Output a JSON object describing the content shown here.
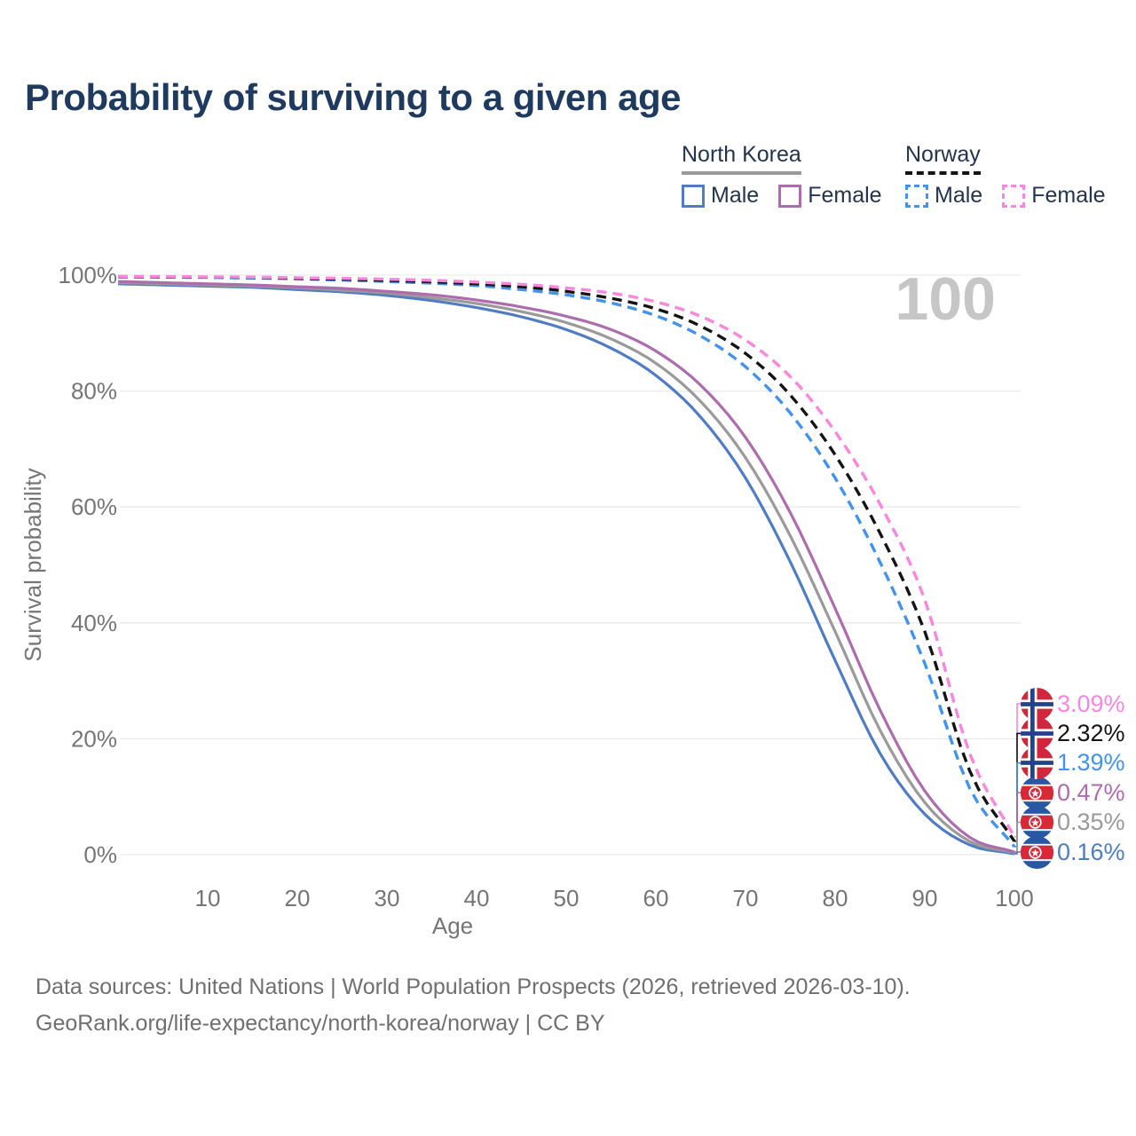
{
  "title": "Probability of surviving to a given age",
  "watermark": "100",
  "legend": {
    "groups": [
      {
        "label": "North Korea",
        "line_style": "solid",
        "underline_color": "#9a9a9a",
        "items": [
          {
            "label": "Male",
            "color": "#4f7cc4",
            "dashed": false
          },
          {
            "label": "Female",
            "color": "#ad6cac",
            "dashed": false
          }
        ]
      },
      {
        "label": "Norway",
        "line_style": "dashed",
        "underline_color": "#141414",
        "items": [
          {
            "label": "Male",
            "color": "#4292f0",
            "dashed": true
          },
          {
            "label": "Female",
            "color": "#fb86dd",
            "dashed": true
          }
        ]
      }
    ]
  },
  "axes": {
    "x": {
      "label": "Age",
      "ticks": [
        10,
        20,
        30,
        40,
        50,
        60,
        70,
        80,
        90,
        100
      ]
    },
    "y": {
      "label": "Survival probability",
      "ticks": [
        "0%",
        "20%",
        "40%",
        "60%",
        "80%",
        "100%"
      ]
    }
  },
  "source": {
    "line1": "Data sources: United Nations | World Population Prospects (2026, retrieved 2026-03-10).",
    "line2": "GeoRank.org/life-expectancy/north-korea/norway | CC BY"
  },
  "colors": {
    "title": "#1e3a5f",
    "axis_text": "#757575",
    "gridline": "#e9e9e9",
    "watermark": "#c6c6c6",
    "norway_flag_red": "#d0273c",
    "norway_flag_blue": "#24418e",
    "nk_flag_blue": "#2857a4",
    "nk_flag_red": "#d82939"
  },
  "chart_data": {
    "type": "line",
    "title": "Probability of surviving to a given age",
    "xlabel": "Age",
    "ylabel": "Survival probability",
    "xlim": [
      0,
      100
    ],
    "ylim": [
      0,
      100
    ],
    "grid": "horizontal",
    "legend_position": "top-right",
    "x_ticks": [
      10,
      20,
      30,
      40,
      50,
      60,
      70,
      80,
      90,
      100
    ],
    "y_ticks_pct": [
      0,
      20,
      40,
      60,
      80,
      100
    ],
    "x": [
      0,
      5,
      10,
      15,
      20,
      25,
      30,
      35,
      40,
      45,
      50,
      55,
      60,
      65,
      70,
      75,
      80,
      85,
      90,
      95,
      100
    ],
    "series": [
      {
        "id": "north-korea-male",
        "name": "North Korea Male",
        "country": "north-korea",
        "sex": "male",
        "style": "solid",
        "color": "#4f7cc4",
        "end_label": "0.16%",
        "values": [
          98.5,
          98.3,
          98.1,
          97.9,
          97.5,
          97.1,
          96.5,
          95.6,
          94.4,
          92.8,
          90.6,
          87.4,
          82.7,
          75.5,
          65.0,
          50.5,
          33.5,
          17.5,
          7.0,
          1.7,
          0.16
        ]
      },
      {
        "id": "north-korea-total",
        "name": "North Korea (both sexes)",
        "country": "north-korea",
        "sex": "both",
        "style": "solid",
        "color": "#9a9a9a",
        "end_label": "0.35%",
        "values": [
          98.7,
          98.5,
          98.3,
          98.1,
          97.8,
          97.4,
          96.9,
          96.1,
          95.1,
          93.7,
          91.8,
          89.0,
          84.8,
          78.2,
          68.5,
          55.0,
          38.5,
          21.5,
          9.0,
          2.3,
          0.35
        ]
      },
      {
        "id": "north-korea-female",
        "name": "North Korea Female",
        "country": "north-korea",
        "sex": "female",
        "style": "solid",
        "color": "#ad6cac",
        "end_label": "0.47%",
        "values": [
          98.9,
          98.7,
          98.5,
          98.3,
          98.0,
          97.7,
          97.2,
          96.6,
          95.7,
          94.5,
          92.9,
          90.6,
          86.9,
          81.0,
          72.0,
          59.0,
          42.5,
          25.0,
          11.0,
          3.0,
          0.47
        ]
      },
      {
        "id": "norway-male",
        "name": "Norway Male",
        "country": "norway",
        "sex": "male",
        "style": "dashed",
        "color": "#4292f0",
        "end_label": "1.39%",
        "values": [
          99.7,
          99.65,
          99.6,
          99.5,
          99.35,
          99.15,
          98.9,
          98.6,
          98.2,
          97.5,
          96.6,
          95.2,
          93.0,
          89.5,
          84.2,
          76.2,
          65.0,
          50.5,
          33.0,
          11.5,
          1.39
        ]
      },
      {
        "id": "norway-total",
        "name": "Norway (both sexes)",
        "country": "norway",
        "sex": "both",
        "style": "dashed",
        "color": "#141414",
        "end_label": "2.32%",
        "values": [
          99.75,
          99.7,
          99.65,
          99.6,
          99.45,
          99.3,
          99.1,
          98.85,
          98.5,
          98.0,
          97.2,
          96.0,
          94.2,
          91.2,
          86.5,
          79.3,
          69.0,
          55.5,
          38.5,
          14.5,
          2.32
        ]
      },
      {
        "id": "norway-female",
        "name": "Norway Female",
        "country": "norway",
        "sex": "female",
        "style": "dashed",
        "color": "#fb86dd",
        "end_label": "3.09%",
        "values": [
          99.8,
          99.75,
          99.7,
          99.65,
          99.55,
          99.45,
          99.3,
          99.1,
          98.8,
          98.4,
          97.8,
          96.9,
          95.4,
          92.9,
          88.8,
          82.5,
          73.0,
          60.5,
          44.0,
          17.5,
          3.09
        ]
      }
    ]
  }
}
